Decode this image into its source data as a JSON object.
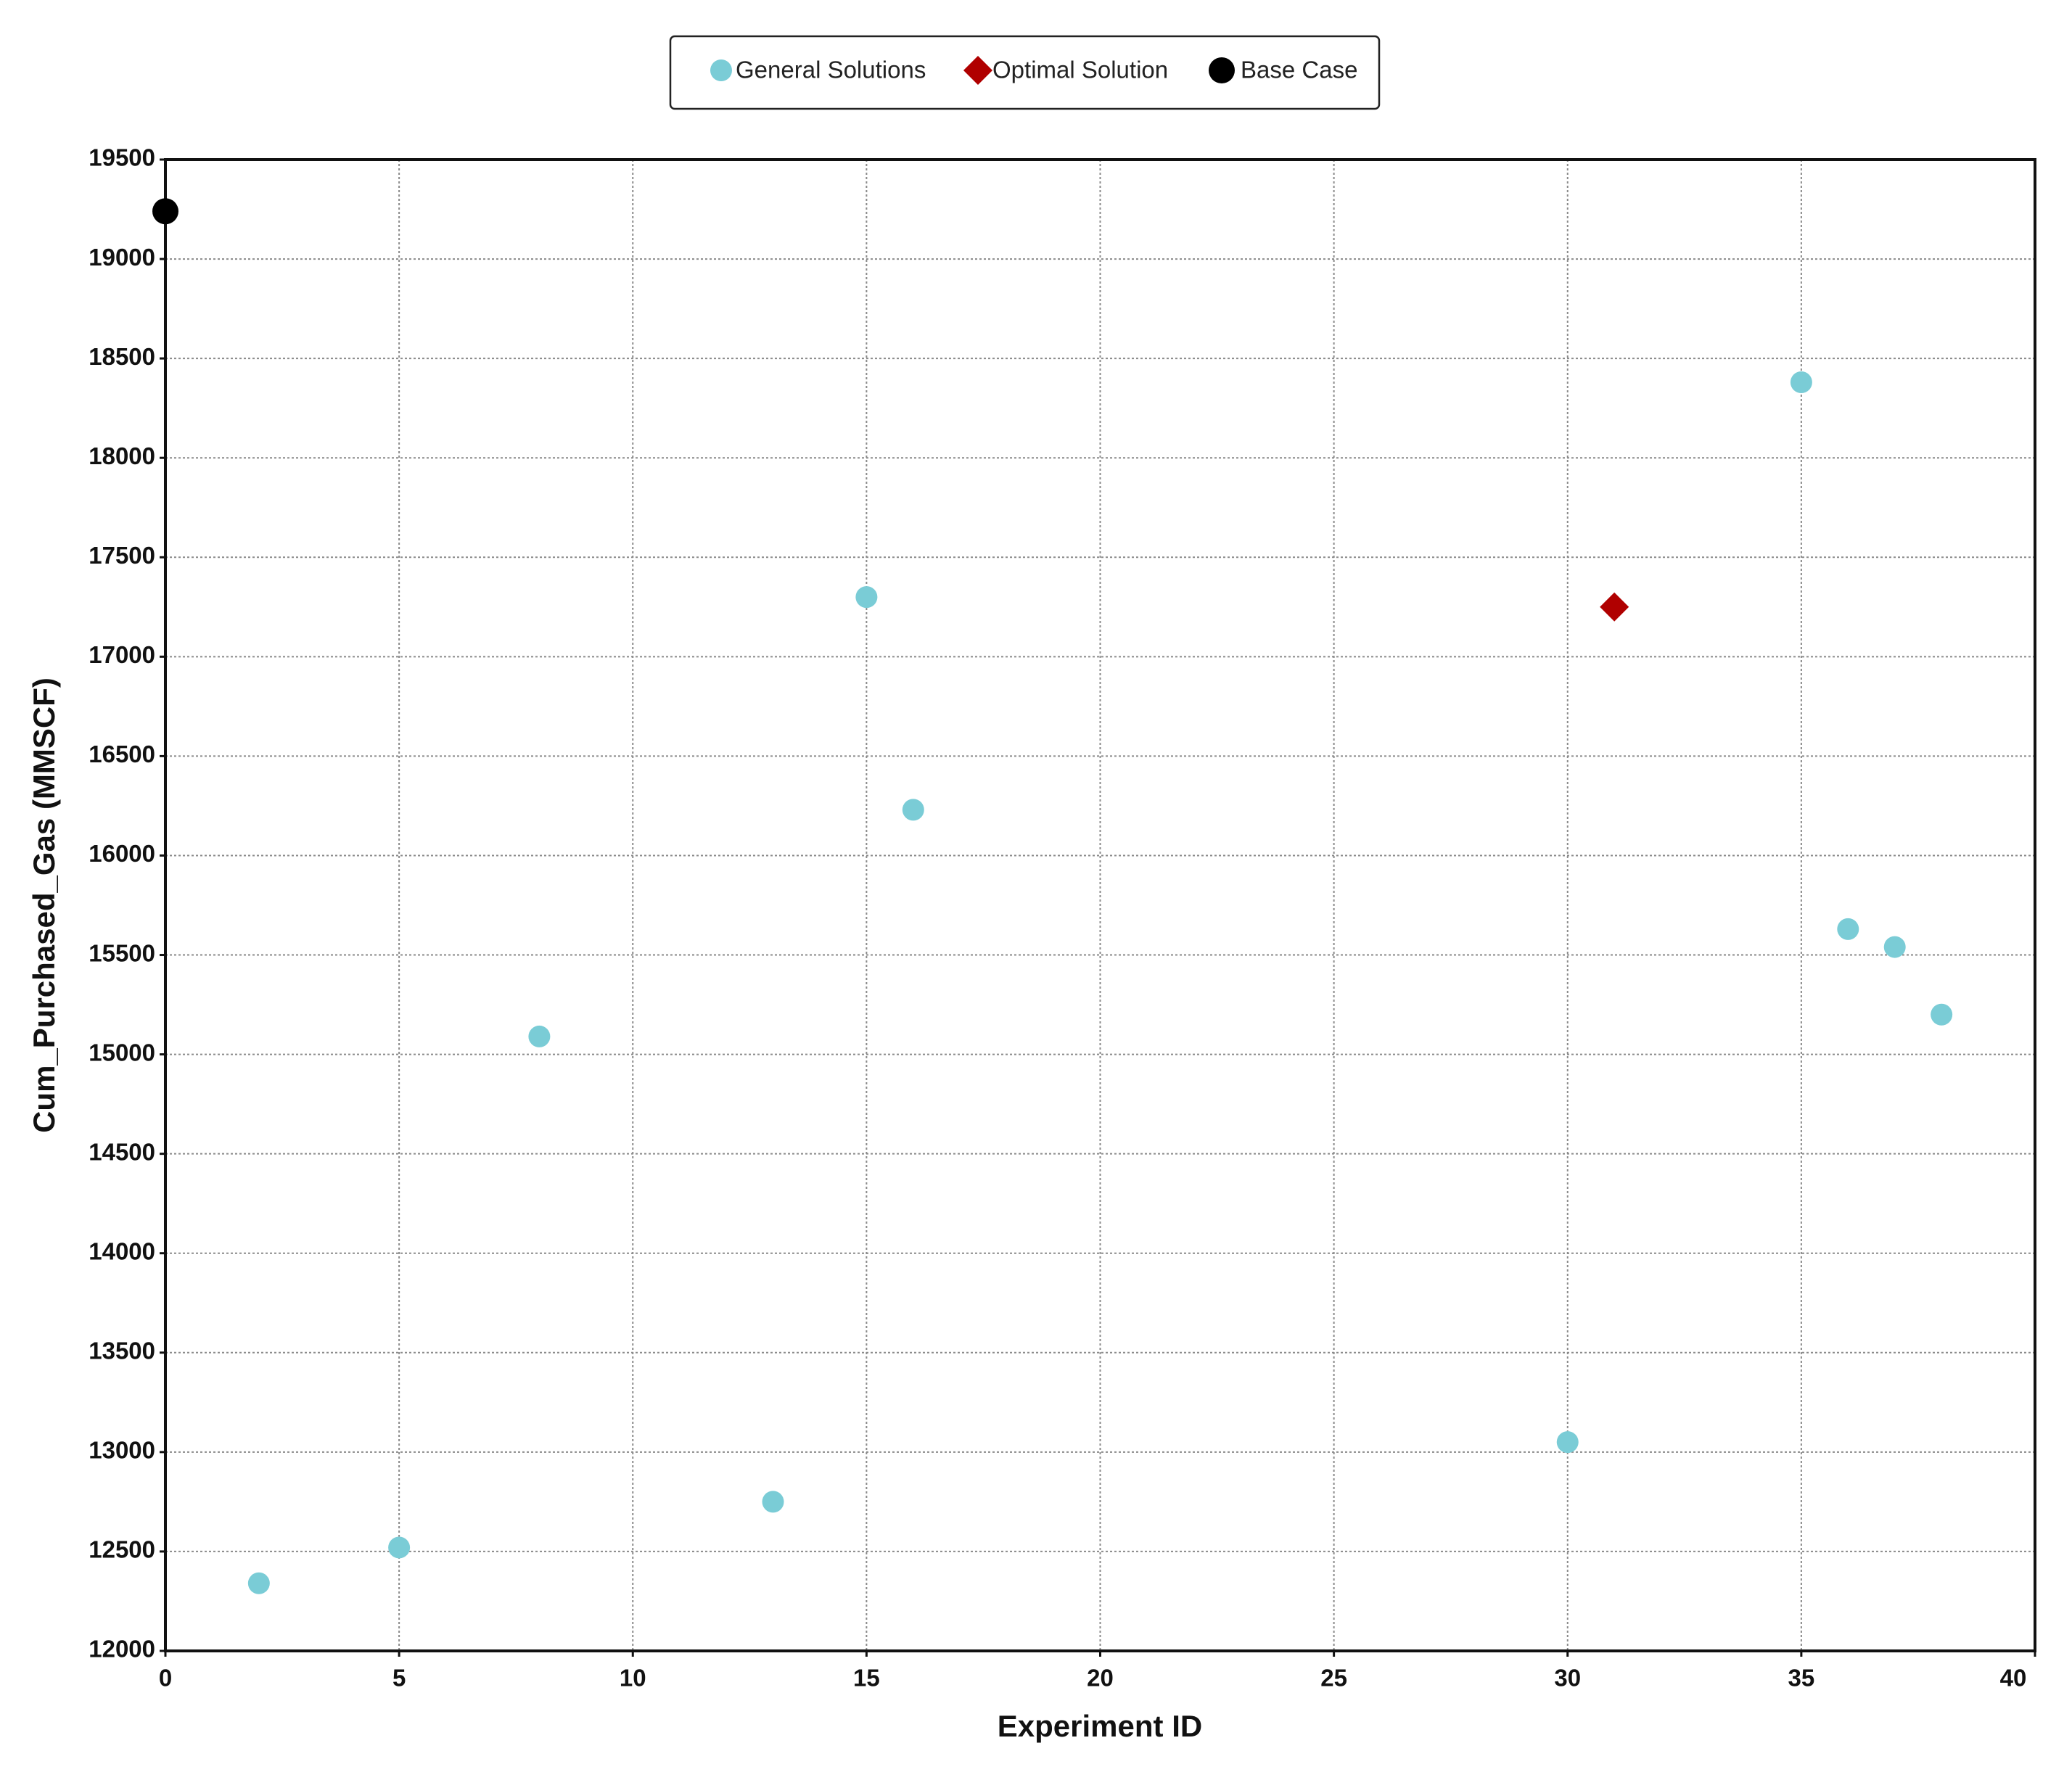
{
  "chart_data": {
    "type": "scatter",
    "x_label": "Experiment ID",
    "y_label": "Cum_Purchased_Gas (MMSCF)",
    "xlim": [
      0,
      40
    ],
    "xticks": [
      0,
      5,
      10,
      15,
      20,
      25,
      30,
      35,
      40
    ],
    "ylim": [
      12000,
      19500
    ],
    "yticks": [
      12000,
      12500,
      13000,
      13500,
      14000,
      14500,
      15000,
      15500,
      16000,
      16500,
      17000,
      17500,
      18000,
      18500,
      19000,
      19500
    ],
    "grid": true,
    "legend": "top",
    "series": [
      {
        "name": "General Solutions",
        "color": "#7accd6",
        "marker": "circle",
        "x": [
          2,
          5,
          8,
          13,
          15,
          16,
          30,
          35,
          36,
          37,
          38
        ],
        "values": [
          12340,
          12520,
          15090,
          12750,
          17300,
          16230,
          13050,
          18380,
          15630,
          15540,
          15200
        ]
      },
      {
        "name": "Optimal Solution",
        "color": "#b00000",
        "marker": "diamond",
        "x": [
          31
        ],
        "values": [
          17250
        ]
      },
      {
        "name": "Base Case",
        "color": "#000000",
        "marker": "circle",
        "x": [
          0
        ],
        "values": [
          19240
        ]
      }
    ]
  }
}
